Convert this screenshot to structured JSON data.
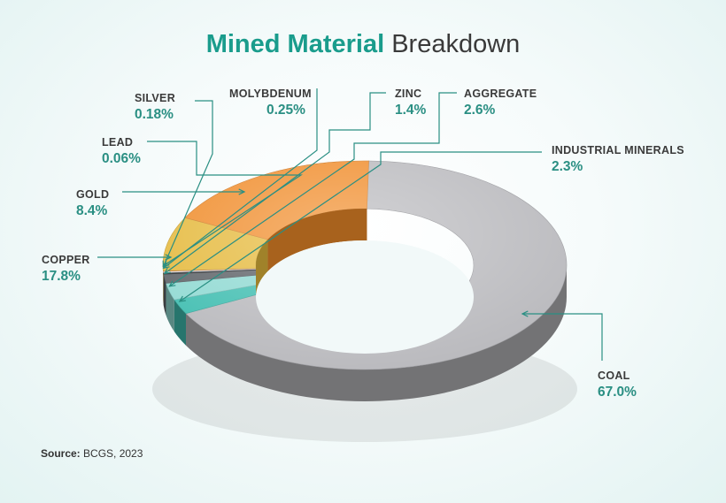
{
  "title": {
    "bold": "Mined Material",
    "rest": "Breakdown"
  },
  "source": {
    "label": "Source:",
    "text": "BCGS, 2023"
  },
  "colors": {
    "accent": "#1a9c8c",
    "coal": "#b9b9bd",
    "industrial_minerals": "#3fbdb0",
    "aggregate": "#8fd9d2",
    "zinc": "#5c6166",
    "molybdenum": "#2f3236",
    "silver": "#f2f2f2",
    "lead": "#c0392b",
    "gold": "#e5b93c",
    "copper": "#f08c2a"
  },
  "chart_data": {
    "type": "pie",
    "style": "3d-donut",
    "title": "Mined Material Breakdown",
    "categories": [
      "COAL",
      "INDUSTRIAL MINERALS",
      "AGGREGATE",
      "ZINC",
      "MOLYBDENUM",
      "SILVER",
      "LEAD",
      "GOLD",
      "COPPER"
    ],
    "values": [
      67.0,
      2.3,
      2.6,
      1.4,
      0.25,
      0.18,
      0.06,
      8.4,
      17.8
    ],
    "labels": [
      "67.0%",
      "2.3%",
      "2.6%",
      "1.4%",
      "0.25%",
      "0.18%",
      "0.06%",
      "8.4%",
      "17.8%"
    ]
  }
}
